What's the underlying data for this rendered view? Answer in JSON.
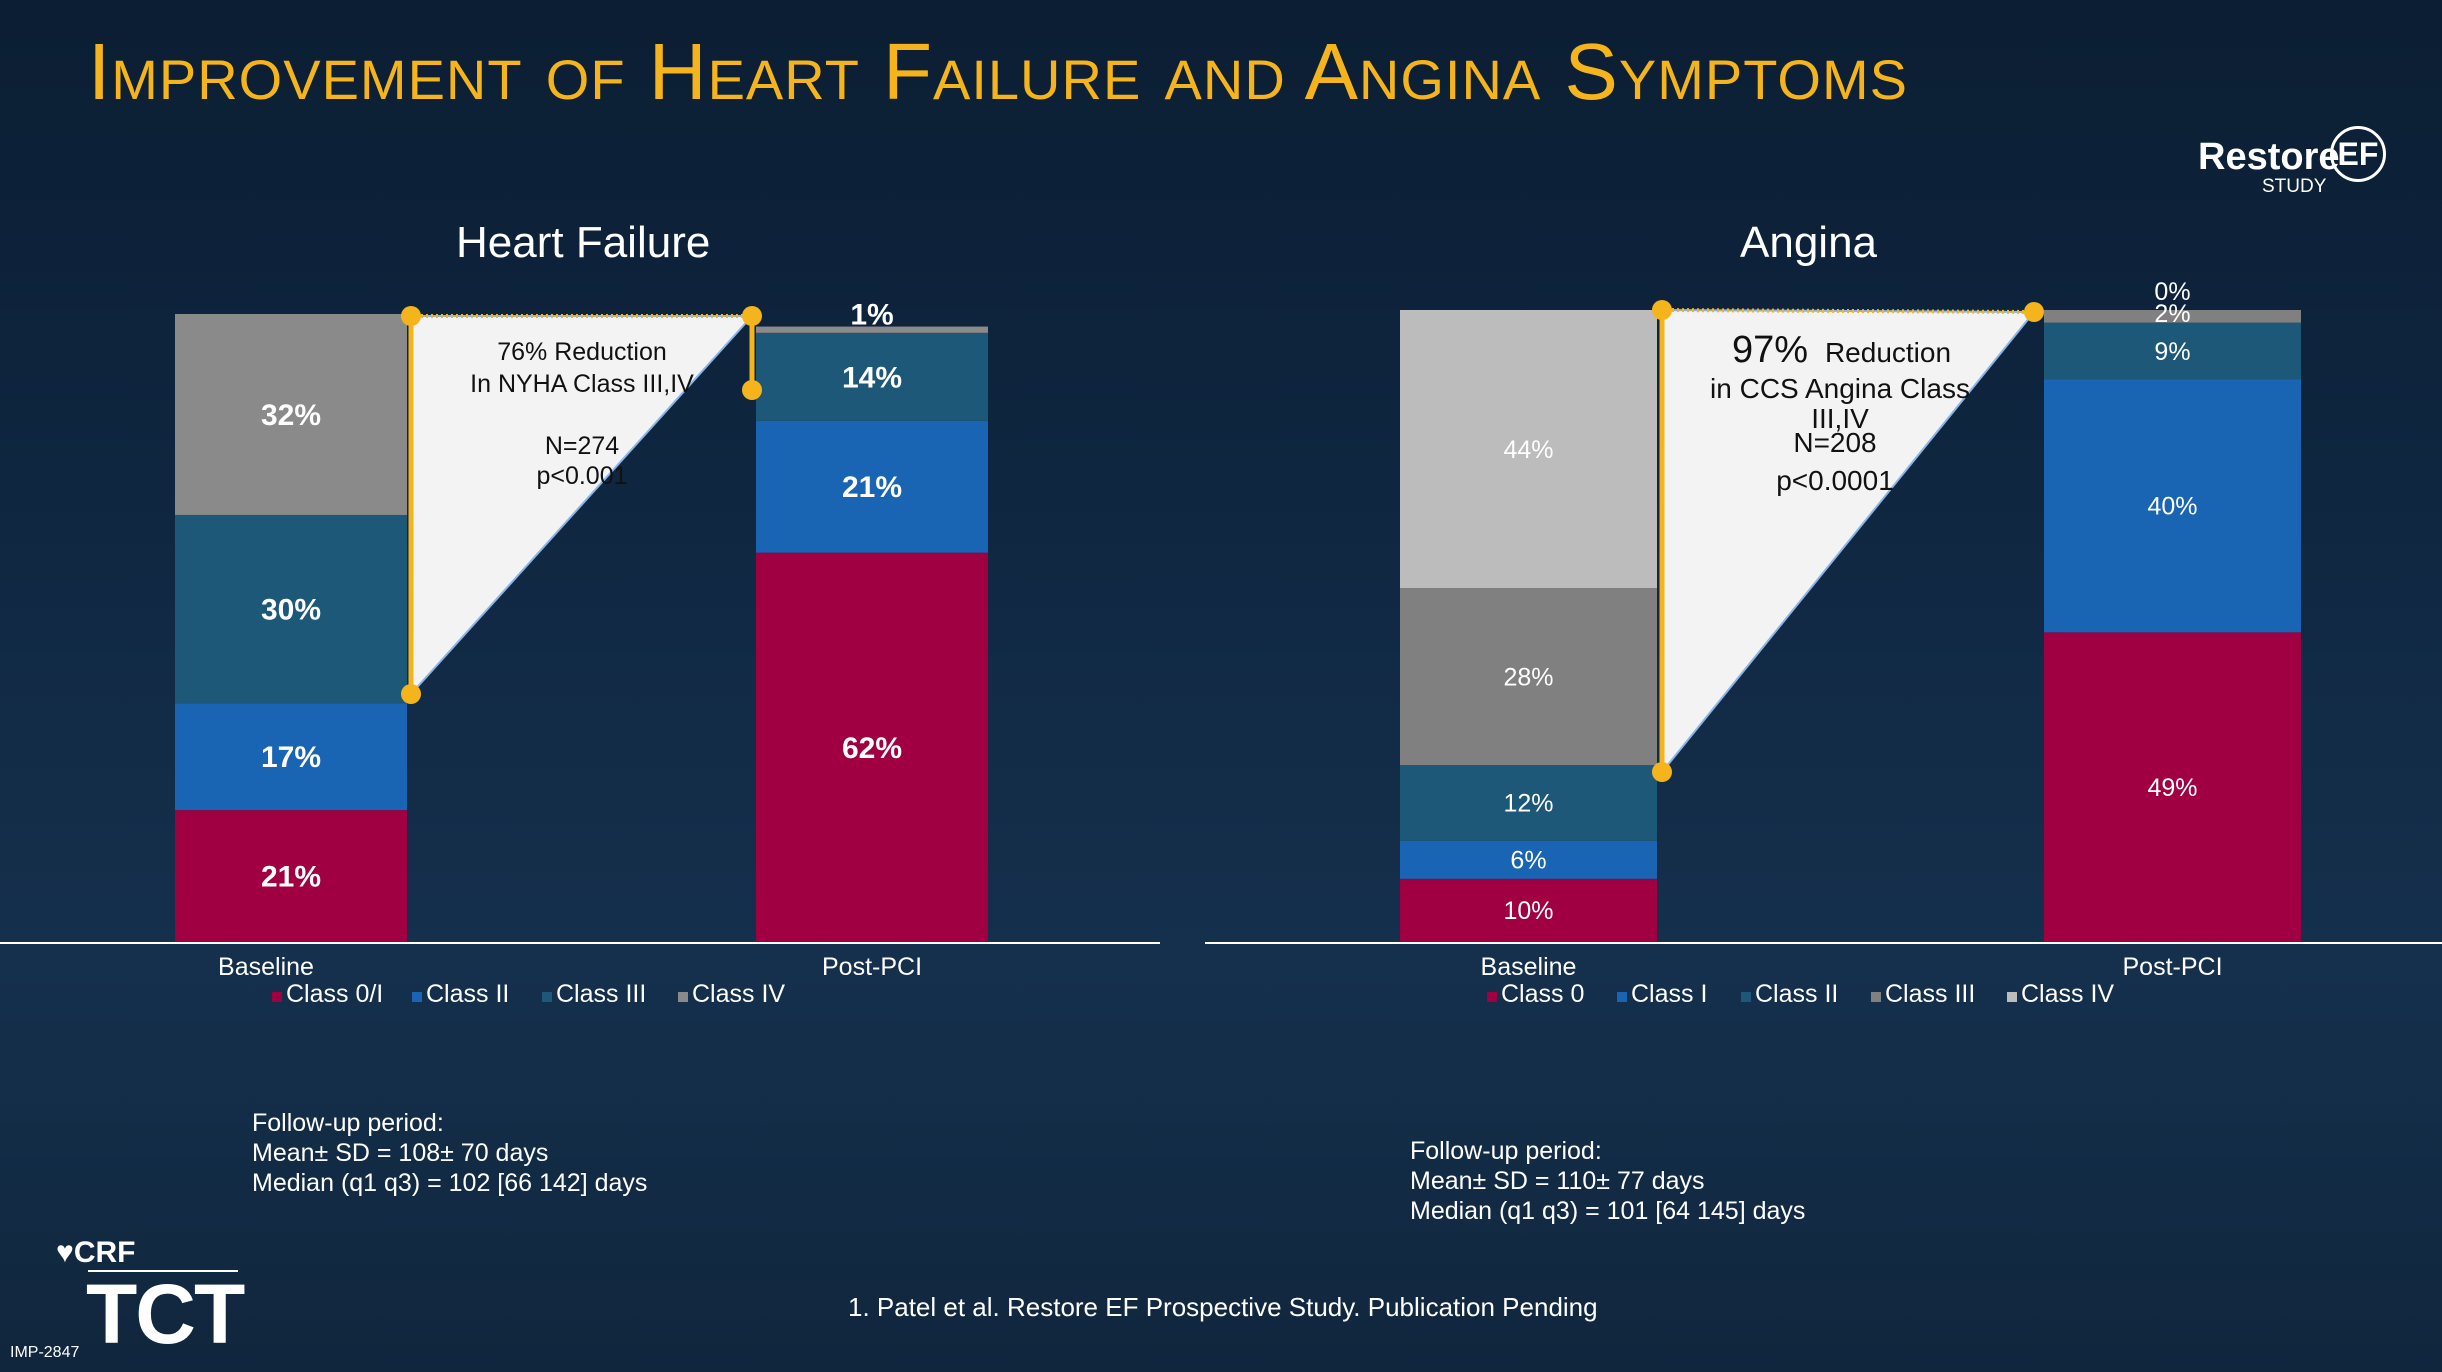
{
  "title": "Improvement of Heart Failure and Angina Symptoms",
  "logo": {
    "word": "Restore",
    "ef": "EF",
    "study": "STUDY"
  },
  "chart_data": [
    {
      "type": "bar",
      "stacked": true,
      "title": "Heart Failure",
      "categories": [
        "Baseline",
        "Post-PCI"
      ],
      "ylim": [
        0,
        100
      ],
      "series": [
        {
          "name": "Class 0/I",
          "color": "#a00042",
          "values": [
            21,
            62
          ]
        },
        {
          "name": "Class II",
          "color": "#1a64b4",
          "values": [
            17,
            21
          ]
        },
        {
          "name": "Class III",
          "color": "#1d5878",
          "values": [
            30,
            14
          ]
        },
        {
          "name": "Class IV",
          "color": "#8a8a8a",
          "values": [
            32,
            1
          ]
        }
      ],
      "annotation": {
        "lines": [
          "76% Reduction",
          "In NYHA Class III,IV",
          "",
          "N=274",
          "p<0.001"
        ]
      },
      "legend_position": "bottom"
    },
    {
      "type": "bar",
      "stacked": true,
      "title": "Angina",
      "categories": [
        "Baseline",
        "Post-PCI"
      ],
      "ylim": [
        0,
        100
      ],
      "series": [
        {
          "name": "Class 0",
          "color": "#a00042",
          "values": [
            10,
            49
          ]
        },
        {
          "name": "Class I",
          "color": "#1a64b4",
          "values": [
            6,
            40
          ]
        },
        {
          "name": "Class II",
          "color": "#1d5878",
          "values": [
            12,
            9
          ]
        },
        {
          "name": "Class III",
          "color": "#808080",
          "values": [
            28,
            2
          ]
        },
        {
          "name": "Class IV",
          "color": "#bcbcbc",
          "values": [
            44,
            0
          ]
        }
      ],
      "annotation": {
        "big": "97%",
        "lines": [
          "Reduction",
          "in CCS Angina Class",
          "III,IV",
          "N=208",
          "p<0.0001"
        ]
      },
      "legend_position": "bottom"
    }
  ],
  "followup": [
    {
      "heading": "Follow-up period:",
      "mean": "Mean± SD = 108± 70 days",
      "median": "Median (q1 q3) = 102 [66 142] days"
    },
    {
      "heading": "Follow-up period:",
      "mean": "Mean± SD = 110± 77 days",
      "median": "Median (q1 q3) = 101 [64 145] days"
    }
  ],
  "footnote": "1.   Patel et al. Restore EF Prospective Study. Publication Pending",
  "branding": {
    "crf": "CRF",
    "tct": "TCT",
    "code": "IMP-2847"
  }
}
